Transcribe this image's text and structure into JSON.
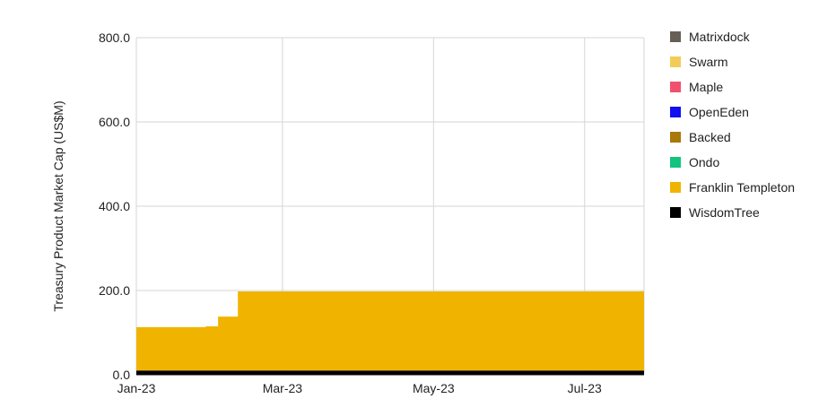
{
  "chart_data": {
    "type": "area",
    "stacked": true,
    "ylabel": "Treasury Product Market Cap (US$M)",
    "xlabel": "",
    "ylim": [
      0,
      800
    ],
    "y_ticks": [
      "0.0",
      "200.0",
      "400.0",
      "600.0",
      "800.0"
    ],
    "x_ticks": [
      {
        "label": "Jan-23",
        "date": "2023-01-01"
      },
      {
        "label": "Mar-23",
        "date": "2023-03-01"
      },
      {
        "label": "May-23",
        "date": "2023-05-01"
      },
      {
        "label": "Jul-23",
        "date": "2023-07-01"
      }
    ],
    "x_range": [
      "2023-01-01",
      "2023-07-25"
    ],
    "grid": true,
    "legend_position": "right",
    "x": [
      "2023-01-01",
      "2023-01-25",
      "2023-01-29",
      "2023-02-03",
      "2023-02-09",
      "2023-02-11",
      "2023-02-13",
      "2023-02-16",
      "2023-02-18",
      "2023-03-01",
      "2023-03-10",
      "2023-03-12",
      "2023-03-17",
      "2023-03-20",
      "2023-03-24",
      "2023-03-29",
      "2023-04-04",
      "2023-04-08",
      "2023-04-13",
      "2023-04-18",
      "2023-04-24",
      "2023-04-30",
      "2023-05-08",
      "2023-05-11",
      "2023-05-14",
      "2023-05-17",
      "2023-05-20",
      "2023-05-23",
      "2023-05-27",
      "2023-06-01",
      "2023-06-04",
      "2023-06-07",
      "2023-06-10",
      "2023-06-12",
      "2023-06-15",
      "2023-06-18",
      "2023-06-21",
      "2023-06-24",
      "2023-06-27",
      "2023-07-01",
      "2023-07-07",
      "2023-07-13",
      "2023-07-19",
      "2023-07-25"
    ],
    "series": [
      {
        "name": "WisdomTree",
        "color": "#000000",
        "values": [
          10,
          10,
          10,
          10,
          10,
          10,
          10,
          10,
          10,
          10,
          10,
          10,
          10,
          10,
          10,
          10,
          10,
          10,
          10,
          10,
          10,
          10,
          10,
          10,
          10,
          10,
          10,
          10,
          10,
          10,
          10,
          10,
          10,
          10,
          10,
          10,
          10,
          10,
          10,
          10,
          10,
          10,
          10,
          10
        ]
      },
      {
        "name": "Franklin Templeton",
        "color": "#f0b400",
        "values": [
          103,
          103,
          105,
          128,
          128,
          188,
          188,
          188,
          188,
          188,
          188,
          188,
          188,
          188,
          188,
          188,
          188,
          188,
          188,
          188,
          188,
          188,
          188,
          188,
          188,
          188,
          188,
          188,
          188,
          188,
          188,
          188,
          188,
          188,
          188,
          188,
          188,
          188,
          188,
          188,
          188,
          188,
          188,
          188
        ]
      },
      {
        "name": "Ondo",
        "color": "#12c47d",
        "values": [
          0,
          0,
          0,
          0,
          0,
          0,
          0,
          0,
          0,
          0,
          0,
          0,
          0,
          0,
          0,
          0,
          0,
          0,
          0,
          0,
          0,
          0,
          0,
          0,
          0,
          0,
          0,
          0,
          0,
          0,
          0,
          0,
          0,
          0,
          0,
          0,
          0,
          0,
          0,
          0,
          0,
          0,
          0,
          0
        ]
      },
      {
        "name": "Backed",
        "color": "#a8780a",
        "values": [
          0,
          0,
          0,
          0,
          0,
          0,
          0,
          0,
          0,
          0,
          0,
          0,
          0,
          0,
          0,
          0,
          0,
          0,
          0,
          0,
          0,
          0,
          0,
          0,
          0,
          0,
          0,
          0,
          0,
          0,
          0,
          0,
          0,
          0,
          0,
          0,
          0,
          0,
          0,
          0,
          0,
          0,
          0,
          0
        ]
      },
      {
        "name": "OpenEden",
        "color": "#1010f0",
        "values": [
          0,
          0,
          0,
          0,
          0,
          0,
          0,
          0,
          0,
          0,
          0,
          0,
          0,
          0,
          0,
          0,
          0,
          0,
          0,
          0,
          0,
          0,
          0,
          0,
          0,
          0,
          0,
          0,
          0,
          0,
          0,
          0,
          0,
          0,
          0,
          0,
          0,
          0,
          0,
          0,
          0,
          0,
          0,
          0
        ]
      },
      {
        "name": "Maple",
        "color": "#f0506e",
        "values": [
          0,
          0,
          0,
          0,
          0,
          0,
          0,
          0,
          0,
          0,
          0,
          0,
          0,
          0,
          0,
          0,
          0,
          0,
          0,
          0,
          0,
          0,
          0,
          0,
          0,
          0,
          0,
          0,
          0,
          0,
          0,
          0,
          0,
          0,
          0,
          0,
          0,
          0,
          0,
          0,
          0,
          0,
          0,
          0
        ]
      },
      {
        "name": "Swarm",
        "color": "#f2cc57",
        "values": [
          0,
          0,
          0,
          0,
          0,
          0,
          0,
          0,
          0,
          0,
          0,
          0,
          0,
          0,
          0,
          0,
          0,
          0,
          0,
          0,
          0,
          0,
          0,
          0,
          0,
          0,
          0,
          0,
          0,
          0,
          0,
          0,
          0,
          0,
          0,
          0,
          0,
          0,
          0,
          0,
          0,
          0,
          0,
          0
        ]
      },
      {
        "name": "Matrixdock",
        "color": "#655f55",
        "values": [
          0,
          0,
          0,
          0,
          0,
          0,
          0,
          0,
          0,
          0,
          0,
          0,
          0,
          0,
          0,
          0,
          0,
          0,
          0,
          0,
          0,
          0,
          0,
          0,
          0,
          0,
          0,
          0,
          0,
          0,
          0,
          0,
          0,
          0,
          0,
          0,
          0,
          0,
          0,
          0,
          0,
          0,
          0,
          0
        ]
      }
    ]
  }
}
